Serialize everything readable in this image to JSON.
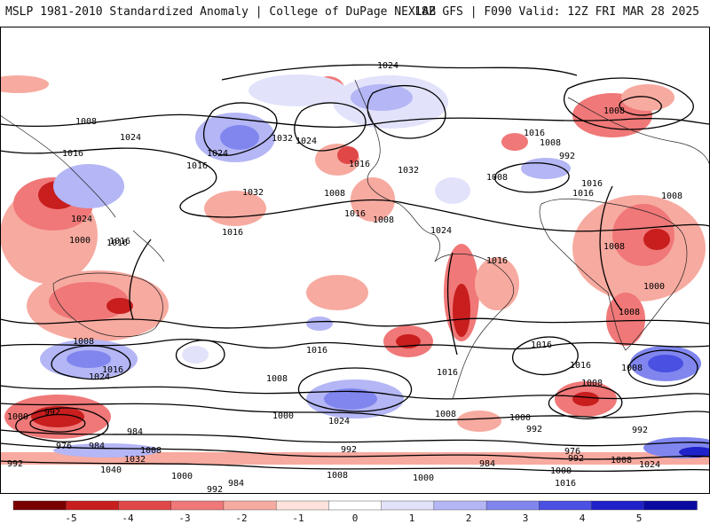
{
  "header": {
    "title": "MSLP 1981-2010 Standardized Anomaly | College of DuPage NEXLAB",
    "run_info": "18Z GFS | F090 Valid: 12Z FRI MAR 28 2025"
  },
  "colorbar": {
    "labels": [
      "-5",
      "-4",
      "-3",
      "-2",
      "-1",
      "0",
      "1",
      "2",
      "3",
      "4",
      "5"
    ],
    "colors": [
      "#7a0000",
      "#c81e1e",
      "#e04848",
      "#f07878",
      "#f7aaa0",
      "#fde3dc",
      "#ffffff",
      "#e2e2fb",
      "#b4b6f5",
      "#8086ee",
      "#4a50e2",
      "#1f22c8",
      "#0a0aa0"
    ]
  },
  "map": {
    "background": "#ffffff",
    "contour_labels": [
      "1024",
      "1008",
      "1024",
      "1016",
      "1016",
      "1032",
      "1024",
      "1016",
      "1008",
      "1008",
      "1024",
      "1016",
      "1032",
      "1008",
      "1016",
      "1008",
      "1024",
      "1016",
      "1024",
      "1032",
      "1000",
      "1016",
      "1016",
      "992",
      "1008",
      "1016",
      "1016",
      "1008",
      "1008",
      "1016",
      "1016",
      "1008",
      "1008",
      "1000",
      "1024",
      "1000",
      "992",
      "984",
      "976",
      "984",
      "992",
      "1032",
      "1040",
      "1008",
      "1000",
      "1016",
      "1000",
      "992",
      "984",
      "992",
      "1016",
      "1008",
      "1024",
      "1000",
      "984",
      "992",
      "1008",
      "1000",
      "976",
      "1000",
      "992",
      "1008",
      "1016",
      "1024",
      "992",
      "1008",
      "1008",
      "1016",
      "1016",
      "1008"
    ]
  }
}
